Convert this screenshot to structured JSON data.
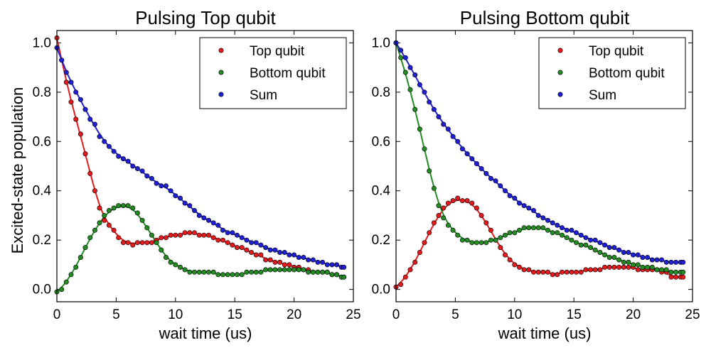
{
  "chart_data": [
    {
      "type": "scatter",
      "title": "Pulsing Top qubit",
      "xlabel": "wait time (us)",
      "ylabel": "Excited-state population",
      "xlim": [
        0,
        25
      ],
      "ylim": [
        -0.05,
        1.05
      ],
      "xticks": [
        0,
        5,
        10,
        15,
        20,
        25
      ],
      "yticks": [
        0.0,
        0.2,
        0.4,
        0.6,
        0.8,
        1.0
      ],
      "xtick_labels": [
        "0",
        "5",
        "10",
        "15",
        "20",
        "25"
      ],
      "ytick_labels": [
        "0.0",
        "0.2",
        "0.4",
        "0.6",
        "0.8",
        "1.0"
      ],
      "legend": {
        "position": "top-right",
        "entries": [
          "Top qubit",
          "Bottom qubit",
          "Sum"
        ]
      },
      "grid": false,
      "x": [
        0.0,
        0.4,
        0.8,
        1.2,
        1.6,
        2.0,
        2.4,
        2.8,
        3.2,
        3.6,
        4.0,
        4.4,
        4.8,
        5.2,
        5.6,
        6.0,
        6.4,
        6.8,
        7.2,
        7.6,
        8.0,
        8.4,
        8.8,
        9.2,
        9.6,
        10.0,
        10.4,
        10.8,
        11.2,
        11.6,
        12.0,
        12.4,
        12.8,
        13.2,
        13.6,
        14.0,
        14.4,
        14.8,
        15.2,
        15.6,
        16.0,
        16.4,
        16.8,
        17.2,
        17.6,
        18.0,
        18.4,
        18.8,
        19.2,
        19.6,
        20.0,
        20.4,
        20.8,
        21.2,
        21.6,
        22.0,
        22.4,
        22.8,
        23.2,
        23.6,
        24.0,
        24.2
      ],
      "series": [
        {
          "name": "Top qubit",
          "color": "#e41a1c",
          "values": [
            1.02,
            0.93,
            0.84,
            0.76,
            0.69,
            0.63,
            0.55,
            0.47,
            0.4,
            0.33,
            0.28,
            0.26,
            0.24,
            0.21,
            0.19,
            0.19,
            0.18,
            0.19,
            0.19,
            0.19,
            0.19,
            0.2,
            0.21,
            0.21,
            0.22,
            0.22,
            0.22,
            0.23,
            0.23,
            0.23,
            0.22,
            0.22,
            0.22,
            0.21,
            0.2,
            0.2,
            0.19,
            0.18,
            0.17,
            0.17,
            0.16,
            0.15,
            0.14,
            0.14,
            0.12,
            0.12,
            0.11,
            0.11,
            0.1,
            0.1,
            0.09,
            0.09,
            0.08,
            0.08,
            0.07,
            0.07,
            0.07,
            0.07,
            0.06,
            0.06,
            0.05,
            0.05
          ]
        },
        {
          "name": "Bottom qubit",
          "color": "#228b22",
          "values": [
            -0.01,
            0.0,
            0.03,
            0.06,
            0.09,
            0.13,
            0.17,
            0.21,
            0.24,
            0.27,
            0.3,
            0.32,
            0.33,
            0.34,
            0.34,
            0.34,
            0.33,
            0.31,
            0.28,
            0.25,
            0.22,
            0.19,
            0.16,
            0.13,
            0.11,
            0.1,
            0.09,
            0.08,
            0.07,
            0.07,
            0.07,
            0.07,
            0.07,
            0.07,
            0.06,
            0.06,
            0.06,
            0.06,
            0.06,
            0.06,
            0.07,
            0.07,
            0.07,
            0.07,
            0.08,
            0.08,
            0.08,
            0.08,
            0.08,
            0.08,
            0.08,
            0.08,
            0.08,
            0.07,
            0.07,
            0.07,
            0.07,
            0.07,
            0.06,
            0.06,
            0.05,
            0.05
          ]
        },
        {
          "name": "Sum",
          "color": "#1f1fd6",
          "values": [
            0.98,
            0.93,
            0.88,
            0.84,
            0.8,
            0.77,
            0.73,
            0.69,
            0.67,
            0.62,
            0.6,
            0.58,
            0.56,
            0.54,
            0.53,
            0.52,
            0.5,
            0.49,
            0.48,
            0.46,
            0.45,
            0.43,
            0.42,
            0.42,
            0.4,
            0.38,
            0.37,
            0.35,
            0.34,
            0.32,
            0.3,
            0.29,
            0.28,
            0.27,
            0.26,
            0.24,
            0.23,
            0.23,
            0.22,
            0.21,
            0.2,
            0.19,
            0.19,
            0.18,
            0.17,
            0.16,
            0.16,
            0.15,
            0.15,
            0.14,
            0.14,
            0.13,
            0.13,
            0.12,
            0.12,
            0.11,
            0.11,
            0.1,
            0.1,
            0.1,
            0.09,
            0.09
          ]
        }
      ]
    },
    {
      "type": "scatter",
      "title": "Pulsing Bottom qubit",
      "xlabel": "wait time (us)",
      "ylabel": "",
      "xlim": [
        0,
        25
      ],
      "ylim": [
        -0.05,
        1.05
      ],
      "xticks": [
        0,
        5,
        10,
        15,
        20,
        25
      ],
      "yticks": [
        0.0,
        0.2,
        0.4,
        0.6,
        0.8,
        1.0
      ],
      "xtick_labels": [
        "0",
        "5",
        "10",
        "15",
        "20",
        "25"
      ],
      "ytick_labels": [
        "0.0",
        "0.2",
        "0.4",
        "0.6",
        "0.8",
        "1.0"
      ],
      "legend": {
        "position": "top-right",
        "entries": [
          "Top qubit",
          "Bottom qubit",
          "Sum"
        ]
      },
      "grid": false,
      "x": [
        0.0,
        0.4,
        0.8,
        1.2,
        1.6,
        2.0,
        2.4,
        2.8,
        3.2,
        3.6,
        4.0,
        4.4,
        4.8,
        5.2,
        5.6,
        6.0,
        6.4,
        6.8,
        7.2,
        7.6,
        8.0,
        8.4,
        8.8,
        9.2,
        9.6,
        10.0,
        10.4,
        10.8,
        11.2,
        11.6,
        12.0,
        12.4,
        12.8,
        13.2,
        13.6,
        14.0,
        14.4,
        14.8,
        15.2,
        15.6,
        16.0,
        16.4,
        16.8,
        17.2,
        17.6,
        18.0,
        18.4,
        18.8,
        19.2,
        19.6,
        20.0,
        20.4,
        20.8,
        21.2,
        21.6,
        22.0,
        22.4,
        22.8,
        23.2,
        23.6,
        24.0,
        24.2
      ],
      "series": [
        {
          "name": "Top qubit",
          "color": "#e41a1c",
          "values": [
            0.01,
            0.02,
            0.05,
            0.08,
            0.11,
            0.15,
            0.19,
            0.23,
            0.27,
            0.3,
            0.33,
            0.35,
            0.36,
            0.37,
            0.36,
            0.36,
            0.35,
            0.33,
            0.3,
            0.27,
            0.24,
            0.2,
            0.17,
            0.14,
            0.12,
            0.1,
            0.09,
            0.08,
            0.08,
            0.07,
            0.07,
            0.07,
            0.07,
            0.06,
            0.06,
            0.07,
            0.07,
            0.07,
            0.07,
            0.07,
            0.08,
            0.08,
            0.08,
            0.08,
            0.09,
            0.09,
            0.09,
            0.09,
            0.09,
            0.09,
            0.09,
            0.08,
            0.08,
            0.08,
            0.08,
            0.08,
            0.07,
            0.07,
            0.05,
            0.05,
            0.05,
            0.05
          ]
        },
        {
          "name": "Bottom qubit",
          "color": "#228b22",
          "values": [
            1.0,
            0.94,
            0.88,
            0.81,
            0.73,
            0.65,
            0.57,
            0.48,
            0.41,
            0.34,
            0.29,
            0.26,
            0.24,
            0.22,
            0.2,
            0.2,
            0.19,
            0.19,
            0.19,
            0.19,
            0.2,
            0.2,
            0.21,
            0.22,
            0.23,
            0.23,
            0.24,
            0.25,
            0.25,
            0.25,
            0.25,
            0.25,
            0.24,
            0.23,
            0.23,
            0.22,
            0.21,
            0.2,
            0.19,
            0.18,
            0.18,
            0.17,
            0.16,
            0.15,
            0.14,
            0.13,
            0.13,
            0.12,
            0.11,
            0.11,
            0.1,
            0.1,
            0.09,
            0.09,
            0.09,
            0.08,
            0.08,
            0.08,
            0.07,
            0.07,
            0.07,
            0.07
          ]
        },
        {
          "name": "Sum",
          "color": "#1f1fd6",
          "values": [
            1.0,
            0.97,
            0.94,
            0.9,
            0.87,
            0.83,
            0.8,
            0.76,
            0.73,
            0.7,
            0.67,
            0.65,
            0.62,
            0.6,
            0.57,
            0.55,
            0.53,
            0.51,
            0.49,
            0.47,
            0.45,
            0.44,
            0.42,
            0.4,
            0.38,
            0.37,
            0.35,
            0.34,
            0.33,
            0.32,
            0.3,
            0.29,
            0.28,
            0.27,
            0.26,
            0.25,
            0.24,
            0.24,
            0.23,
            0.22,
            0.21,
            0.2,
            0.2,
            0.19,
            0.18,
            0.17,
            0.17,
            0.16,
            0.15,
            0.15,
            0.14,
            0.14,
            0.13,
            0.13,
            0.12,
            0.12,
            0.12,
            0.11,
            0.11,
            0.11,
            0.11,
            0.11
          ]
        }
      ]
    }
  ]
}
